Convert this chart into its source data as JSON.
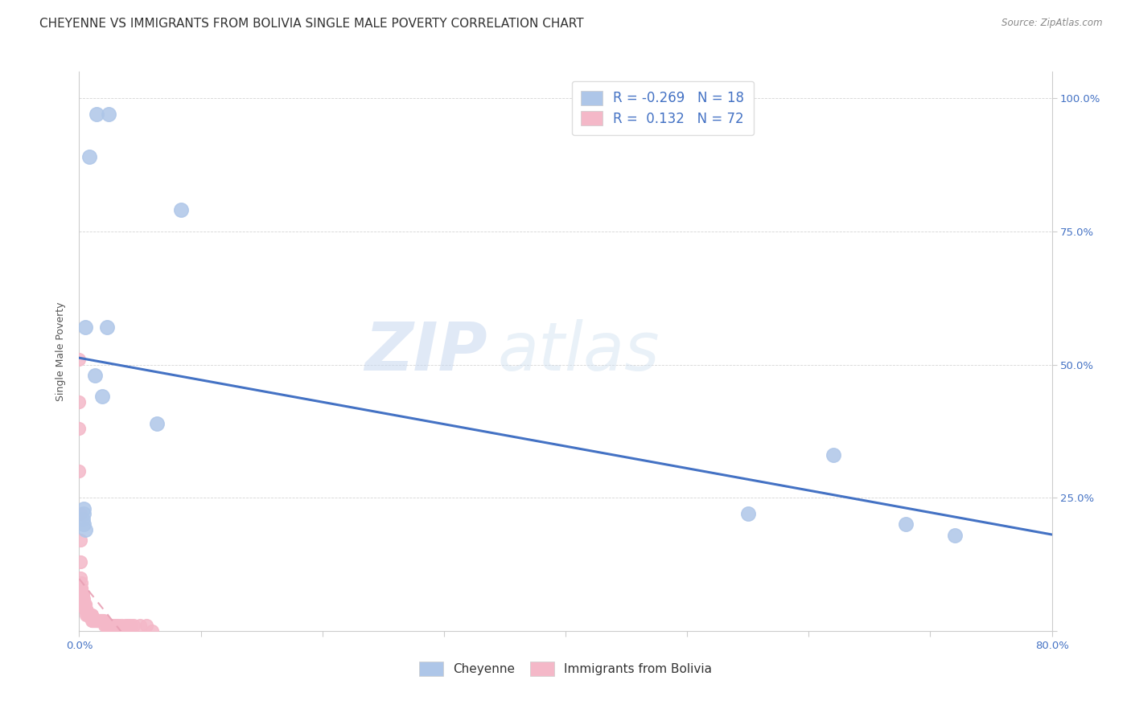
{
  "title": "CHEYENNE VS IMMIGRANTS FROM BOLIVIA SINGLE MALE POVERTY CORRELATION CHART",
  "source": "Source: ZipAtlas.com",
  "ylabel": "Single Male Poverty",
  "xlim": [
    0.0,
    0.8
  ],
  "ylim": [
    0.0,
    1.05
  ],
  "yticks": [
    0.0,
    0.25,
    0.5,
    0.75,
    1.0
  ],
  "xticks": [
    0.0,
    0.1,
    0.2,
    0.3,
    0.4,
    0.5,
    0.6,
    0.7,
    0.8
  ],
  "cheyenne_color": "#aec6e8",
  "bolivia_color": "#f4b8c8",
  "cheyenne_R": -0.269,
  "cheyenne_N": 18,
  "bolivia_R": 0.132,
  "bolivia_N": 72,
  "cheyenne_line_color": "#4472c4",
  "bolivia_line_color": "#e8a0b4",
  "watermark_zip": "ZIP",
  "watermark_atlas": "atlas",
  "right_tick_color": "#4472c4",
  "bottom_tick_color": "#4472c4",
  "cheyenne_x": [
    0.014,
    0.024,
    0.084,
    0.008,
    0.005,
    0.013,
    0.019,
    0.023,
    0.004,
    0.004,
    0.064,
    0.003,
    0.005,
    0.004,
    0.62,
    0.55,
    0.68,
    0.72
  ],
  "cheyenne_y": [
    0.97,
    0.97,
    0.79,
    0.89,
    0.57,
    0.48,
    0.44,
    0.57,
    0.22,
    0.2,
    0.39,
    0.21,
    0.19,
    0.23,
    0.33,
    0.22,
    0.2,
    0.18
  ],
  "bolivia_x": [
    0.0,
    0.0,
    0.0,
    0.0,
    0.001,
    0.001,
    0.001,
    0.001,
    0.002,
    0.002,
    0.002,
    0.002,
    0.003,
    0.003,
    0.003,
    0.003,
    0.003,
    0.004,
    0.004,
    0.004,
    0.004,
    0.005,
    0.005,
    0.005,
    0.005,
    0.005,
    0.005,
    0.006,
    0.006,
    0.006,
    0.006,
    0.007,
    0.007,
    0.008,
    0.008,
    0.008,
    0.009,
    0.009,
    0.009,
    0.01,
    0.01,
    0.01,
    0.011,
    0.011,
    0.012,
    0.013,
    0.013,
    0.014,
    0.015,
    0.015,
    0.015,
    0.016,
    0.017,
    0.018,
    0.019,
    0.02,
    0.021,
    0.022,
    0.024,
    0.025,
    0.026,
    0.028,
    0.03,
    0.032,
    0.035,
    0.038,
    0.04,
    0.042,
    0.045,
    0.05,
    0.055,
    0.06
  ],
  "bolivia_y": [
    0.51,
    0.43,
    0.38,
    0.3,
    0.22,
    0.17,
    0.13,
    0.1,
    0.09,
    0.08,
    0.08,
    0.07,
    0.07,
    0.07,
    0.06,
    0.06,
    0.06,
    0.06,
    0.05,
    0.05,
    0.05,
    0.05,
    0.05,
    0.04,
    0.04,
    0.04,
    0.04,
    0.04,
    0.04,
    0.04,
    0.03,
    0.03,
    0.03,
    0.03,
    0.03,
    0.03,
    0.03,
    0.03,
    0.03,
    0.03,
    0.03,
    0.02,
    0.02,
    0.02,
    0.02,
    0.02,
    0.02,
    0.02,
    0.02,
    0.02,
    0.02,
    0.02,
    0.02,
    0.02,
    0.02,
    0.02,
    0.01,
    0.01,
    0.01,
    0.01,
    0.01,
    0.01,
    0.01,
    0.01,
    0.01,
    0.01,
    0.01,
    0.01,
    0.01,
    0.01,
    0.01,
    0.0
  ],
  "legend_cheyenne_label": "Cheyenne",
  "legend_bolivia_label": "Immigrants from Bolivia",
  "title_fontsize": 11,
  "axis_label_fontsize": 9,
  "tick_fontsize": 9.5
}
